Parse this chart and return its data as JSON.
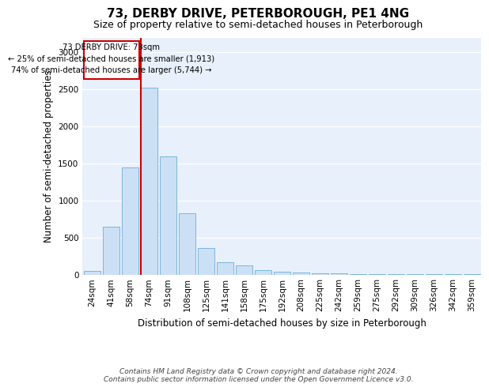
{
  "title": "73, DERBY DRIVE, PETERBOROUGH, PE1 4NG",
  "subtitle": "Size of property relative to semi-detached houses in Peterborough",
  "xlabel": "Distribution of semi-detached houses by size in Peterborough",
  "ylabel": "Number of semi-detached properties",
  "footnote1": "Contains HM Land Registry data © Crown copyright and database right 2024.",
  "footnote2": "Contains public sector information licensed under the Open Government Licence v3.0.",
  "categories": [
    "24sqm",
    "41sqm",
    "58sqm",
    "74sqm",
    "91sqm",
    "108sqm",
    "125sqm",
    "141sqm",
    "158sqm",
    "175sqm",
    "192sqm",
    "208sqm",
    "225sqm",
    "242sqm",
    "259sqm",
    "275sqm",
    "292sqm",
    "309sqm",
    "326sqm",
    "342sqm",
    "359sqm"
  ],
  "values": [
    45,
    650,
    1450,
    2520,
    1590,
    830,
    360,
    165,
    125,
    55,
    40,
    25,
    18,
    12,
    8,
    5,
    4,
    3,
    2,
    2,
    1
  ],
  "bar_color": "#cce0f5",
  "bar_edge_color": "#6aaed6",
  "red_line_color": "#cc0000",
  "annotation_text1": "73 DERBY DRIVE: 73sqm",
  "annotation_text2": "← 25% of semi-detached houses are smaller (1,913)",
  "annotation_text3": "74% of semi-detached houses are larger (5,744) →",
  "annotation_box_color": "#ffffff",
  "annotation_box_edge": "#cc0000",
  "ylim": [
    0,
    3200
  ],
  "yticks": [
    0,
    500,
    1000,
    1500,
    2000,
    2500,
    3000
  ],
  "bg_color": "#e8f0fb",
  "title_fontsize": 11,
  "subtitle_fontsize": 9,
  "axis_label_fontsize": 8.5,
  "tick_fontsize": 7.5,
  "footnote_fontsize": 6.5
}
